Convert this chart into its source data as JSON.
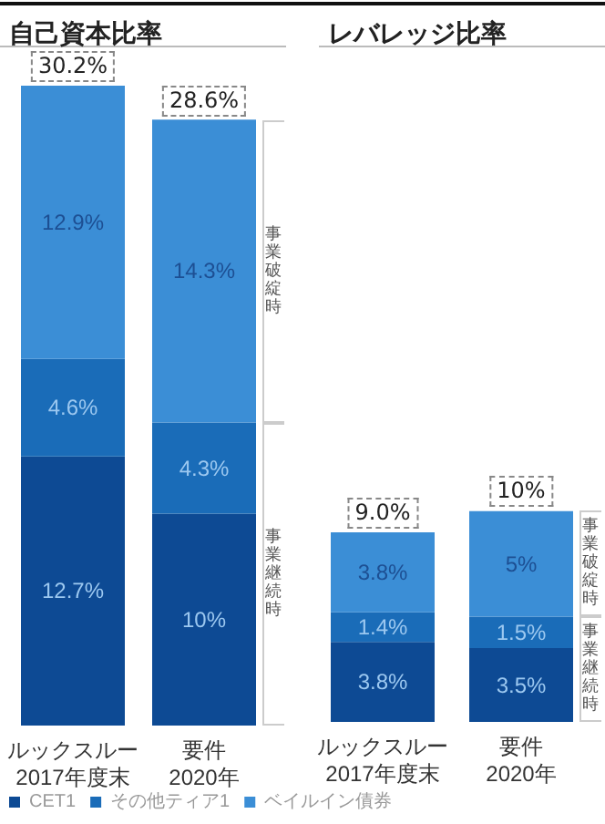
{
  "chart_data": [
    {
      "type": "bar",
      "title": "自己資本比率",
      "stacked": true,
      "categories": [
        "ルックスルー\n2017年度末",
        "要件\n2020年"
      ],
      "series": [
        {
          "name": "CET1",
          "color": "#0d4a94",
          "values": [
            12.7,
            10
          ],
          "value_labels": [
            "12.7%",
            "10%"
          ]
        },
        {
          "name": "その他ティア1",
          "color": "#1a6cb8",
          "values": [
            4.6,
            4.3
          ],
          "value_labels": [
            "4.6%",
            "4.3%"
          ]
        },
        {
          "name": "ベイルイン債券",
          "color": "#3b8ed6",
          "values": [
            12.9,
            14.3
          ],
          "value_labels": [
            "12.9%",
            "14.3%"
          ]
        }
      ],
      "totals": [
        "30.2%",
        "28.6%"
      ],
      "annotations": [
        "事業破綻時",
        "事業継続時"
      ],
      "legend": "bottom"
    },
    {
      "type": "bar",
      "title": "レバレッジ比率",
      "stacked": true,
      "categories": [
        "ルックスルー\n2017年度末",
        "要件\n2020年"
      ],
      "series": [
        {
          "color": "#0d4a94",
          "values": [
            3.8,
            3.5
          ],
          "value_labels": [
            "3.8%",
            "3.5%"
          ]
        },
        {
          "color": "#1a6cb8",
          "values": [
            1.4,
            1.5
          ],
          "value_labels": [
            "1.4%",
            "1.5%"
          ]
        },
        {
          "color": "#3b8ed6",
          "values": [
            3.8,
            5
          ],
          "value_labels": [
            "3.8%",
            "5%"
          ]
        }
      ],
      "totals": [
        "9.0%",
        "10%"
      ],
      "annotations": [
        "事業破綻時",
        "事業継続時"
      ]
    }
  ]
}
